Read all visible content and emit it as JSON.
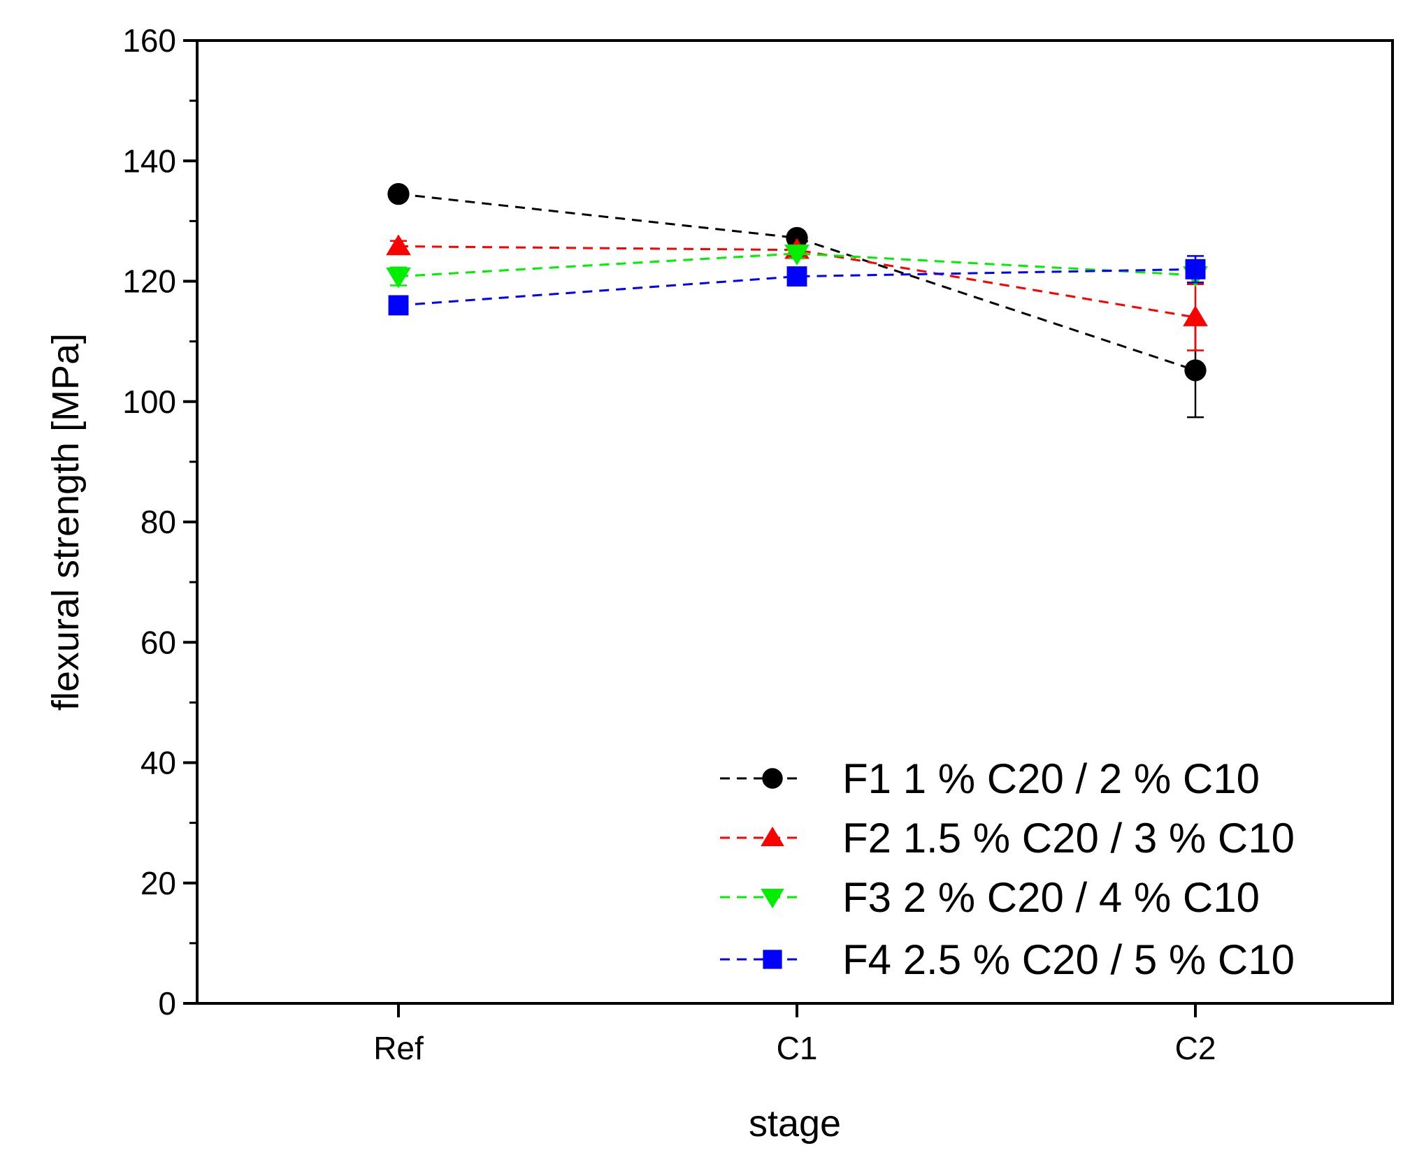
{
  "chart_data": {
    "type": "line",
    "title": "",
    "xlabel": "stage",
    "ylabel": "flexural strength [MPa]",
    "categories": [
      "Ref",
      "C1",
      "C2"
    ],
    "ylim": [
      0,
      160
    ],
    "yticks": [
      0,
      20,
      40,
      60,
      80,
      100,
      120,
      140,
      160
    ],
    "grid": false,
    "legend_position": "bottom-right",
    "series": [
      {
        "name": "F1 1 % C20 / 2 % C10",
        "color": "#000000",
        "marker": "circle",
        "values": [
          134.5,
          127.2,
          105.2
        ],
        "errors": [
          0.8,
          1.0,
          7.8
        ]
      },
      {
        "name": "F2 1.5 % C20 / 3 % C10",
        "color": "#ff0000",
        "marker": "triangle-up",
        "values": [
          125.8,
          125.2,
          114.0
        ],
        "errors": [
          0.9,
          0.8,
          5.5
        ]
      },
      {
        "name": "F3 2 % C20 / 4 % C10",
        "color": "#00ee00",
        "marker": "triangle-down",
        "values": [
          120.8,
          124.6,
          121.0
        ],
        "errors": [
          1.5,
          0.8,
          1.2
        ]
      },
      {
        "name": "F4 2.5 % C20 / 5 % C10",
        "color": "#0000ff",
        "marker": "square",
        "values": [
          116.0,
          120.8,
          122.0
        ],
        "errors": [
          0.6,
          0.6,
          2.2
        ]
      }
    ]
  }
}
